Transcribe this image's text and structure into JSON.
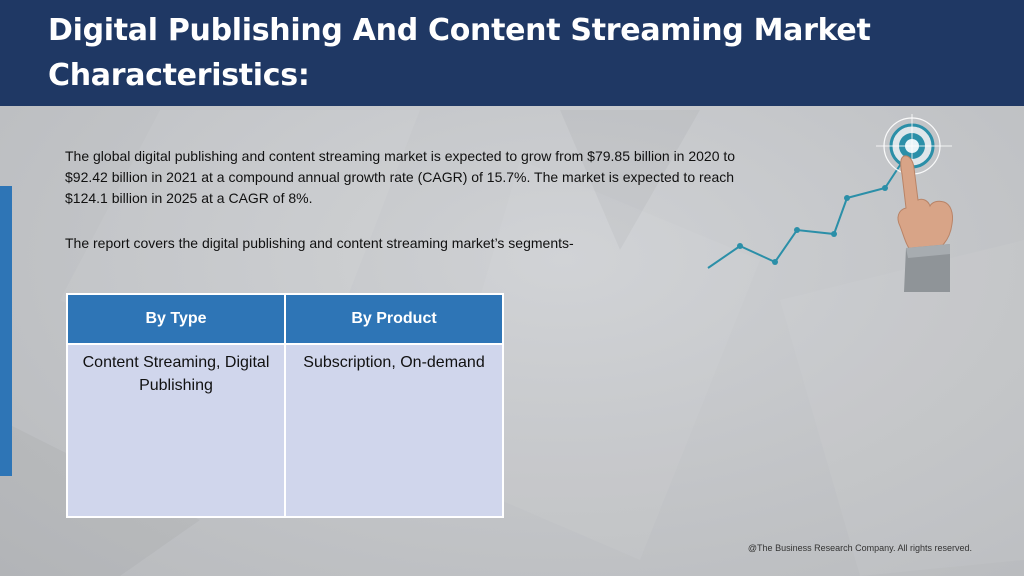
{
  "slide": {
    "title": "Digital Publishing And Content Streaming Market Characteristics:",
    "paragraph_1": "The global digital publishing and content streaming market is expected to grow from $79.85 billion in 2020 to $92.42 billion in 2021 at a compound annual growth rate (CAGR) of 15.7%. The market is expected to reach $124.1 billion in 2025 at a CAGR of 8%.",
    "paragraph_2": "The report covers the digital publishing and content streaming market’s segments-",
    "copyright": "@The Business Research Company. All rights reserved."
  },
  "segments_table": {
    "headers": [
      "By Type",
      "By Product"
    ],
    "rows": [
      [
        "Content Streaming, Digital Publishing",
        "Subscription, On-demand"
      ]
    ]
  },
  "colors": {
    "header_bg": "#1f3864",
    "accent_blue": "#2e75b6",
    "table_cell_bg": "#d0d6ec",
    "graphic_teal": "#2b8fa8"
  },
  "icons": {
    "graphic": "hand-touching-target-growth-chart-icon"
  }
}
